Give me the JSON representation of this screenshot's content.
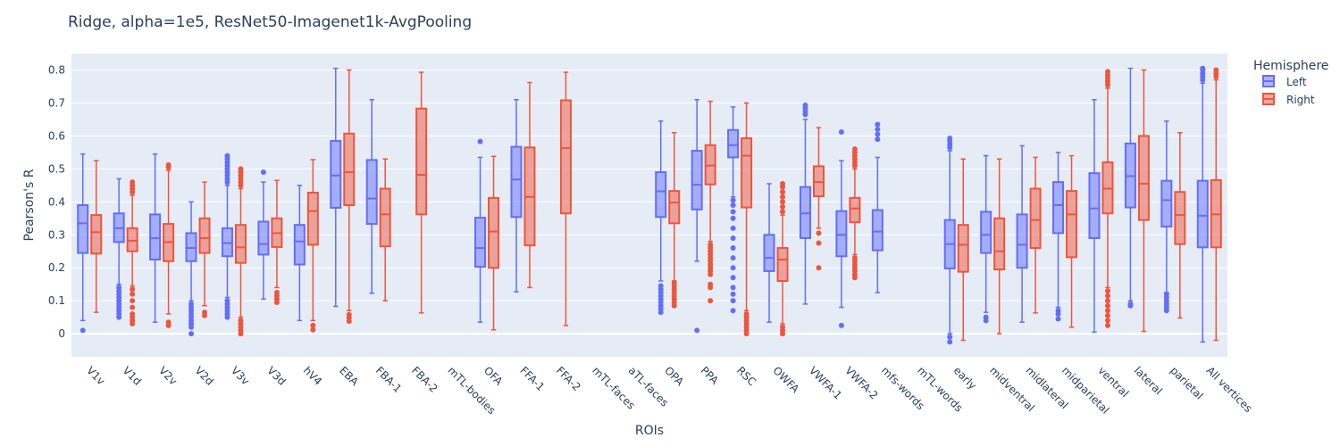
{
  "chart_data": {
    "type": "box",
    "title": "Ridge, alpha=1e5, ResNet50-Imagenet1k-AvgPooling",
    "xlabel": "ROIs",
    "ylabel": "Pearson's R",
    "ylim": [
      -0.07,
      0.85
    ],
    "yticks": [
      0,
      0.1,
      0.2,
      0.3,
      0.4,
      0.5,
      0.6,
      0.7,
      0.8
    ],
    "ytick_labels": [
      "0",
      "0.1",
      "0.2",
      "0.3",
      "0.4",
      "0.5",
      "0.6",
      "0.7",
      "0.8"
    ],
    "grid": true,
    "legend": {
      "title": "Hemisphere",
      "position": "top-right"
    },
    "categories": [
      "V1v",
      "V1d",
      "V2v",
      "V2d",
      "V3v",
      "V3d",
      "hV4",
      "EBA",
      "FBA-1",
      "FBA-2",
      "mTL-bodies",
      "OFA",
      "FFA-1",
      "FFA-2",
      "mTL-faces",
      "aTL-faces",
      "OPA",
      "PPA",
      "RSC",
      "OWFA",
      "VWFA-1",
      "VWFA-2",
      "mfs-words",
      "mTL-words",
      "early",
      "midventral",
      "midlateral",
      "midparietal",
      "ventral",
      "lateral",
      "parietal",
      "All vertices"
    ],
    "series": [
      {
        "name": "Left",
        "color": "#636efa",
        "boxes": [
          {
            "min": 0.04,
            "q1": 0.245,
            "median": 0.335,
            "q3": 0.39,
            "max": 0.545,
            "outliers": [
              0.01
            ]
          },
          {
            "min": 0.15,
            "q1": 0.278,
            "median": 0.32,
            "q3": 0.365,
            "max": 0.47,
            "outliers": [
              0.05,
              0.06,
              0.07,
              0.08,
              0.09,
              0.1,
              0.11,
              0.12,
              0.13,
              0.14
            ]
          },
          {
            "min": 0.035,
            "q1": 0.225,
            "median": 0.29,
            "q3": 0.362,
            "max": 0.545,
            "outliers": []
          },
          {
            "min": 0.1,
            "q1": 0.22,
            "median": 0.26,
            "q3": 0.305,
            "max": 0.4,
            "outliers": [
              0,
              0.02,
              0.03,
              0.04,
              0.05,
              0.06,
              0.07,
              0.08,
              0.09
            ]
          },
          {
            "min": 0.11,
            "q1": 0.235,
            "median": 0.275,
            "q3": 0.32,
            "max": 0.45,
            "outliers": [
              0.05,
              0.06,
              0.07,
              0.08,
              0.09,
              0.1,
              0.46,
              0.47,
              0.48,
              0.49,
              0.5,
              0.51,
              0.52,
              0.53,
              0.54
            ]
          },
          {
            "min": 0.105,
            "q1": 0.24,
            "median": 0.272,
            "q3": 0.34,
            "max": 0.46,
            "outliers": [
              0.49
            ]
          },
          {
            "min": 0.04,
            "q1": 0.21,
            "median": 0.28,
            "q3": 0.33,
            "max": 0.45,
            "outliers": []
          },
          {
            "min": 0.083,
            "q1": 0.382,
            "median": 0.48,
            "q3": 0.585,
            "max": 0.805,
            "outliers": []
          },
          {
            "min": 0.123,
            "q1": 0.333,
            "median": 0.41,
            "q3": 0.527,
            "max": 0.71,
            "outliers": []
          },
          null,
          null,
          {
            "min": 0.035,
            "q1": 0.203,
            "median": 0.26,
            "q3": 0.352,
            "max": 0.535,
            "outliers": [
              0.583
            ]
          },
          {
            "min": 0.127,
            "q1": 0.354,
            "median": 0.468,
            "q3": 0.567,
            "max": 0.71,
            "outliers": []
          },
          null,
          null,
          null,
          {
            "min": 0.16,
            "q1": 0.354,
            "median": 0.432,
            "q3": 0.49,
            "max": 0.645,
            "outliers": [
              0.065,
              0.075,
              0.085,
              0.095,
              0.105,
              0.115,
              0.125,
              0.135,
              0.145
            ]
          },
          {
            "min": 0.22,
            "q1": 0.377,
            "median": 0.452,
            "q3": 0.555,
            "max": 0.71,
            "outliers": [
              0.01
            ]
          },
          {
            "min": 0.415,
            "q1": 0.535,
            "median": 0.572,
            "q3": 0.618,
            "max": 0.688,
            "outliers": [
              0.07,
              0.1,
              0.12,
              0.14,
              0.17,
              0.2,
              0.23,
              0.26,
              0.29,
              0.32,
              0.35,
              0.37,
              0.39,
              0.405
            ]
          },
          {
            "min": 0.035,
            "q1": 0.19,
            "median": 0.23,
            "q3": 0.3,
            "max": 0.455,
            "outliers": []
          },
          {
            "min": 0.09,
            "q1": 0.29,
            "median": 0.365,
            "q3": 0.445,
            "max": 0.65,
            "outliers": [
              0.665,
              0.675,
              0.685,
              0.693
            ]
          },
          {
            "min": 0.08,
            "q1": 0.235,
            "median": 0.3,
            "q3": 0.372,
            "max": 0.525,
            "outliers": [
              0.025,
              0.612
            ]
          },
          {
            "min": 0.125,
            "q1": 0.253,
            "median": 0.31,
            "q3": 0.375,
            "max": 0.535,
            "outliers": [
              0.59,
              0.605,
              0.62,
              0.635
            ]
          },
          null,
          {
            "min": 0.0,
            "q1": 0.198,
            "median": 0.272,
            "q3": 0.345,
            "max": 0.555,
            "outliers": [
              -0.025,
              -0.01,
              0.565,
              0.575,
              0.585,
              0.593
            ]
          },
          {
            "min": 0.065,
            "q1": 0.245,
            "median": 0.3,
            "q3": 0.37,
            "max": 0.54,
            "outliers": [
              0.04,
              0.05
            ]
          },
          {
            "min": 0.035,
            "q1": 0.2,
            "median": 0.27,
            "q3": 0.362,
            "max": 0.57,
            "outliers": []
          },
          {
            "min": 0.08,
            "q1": 0.305,
            "median": 0.39,
            "q3": 0.46,
            "max": 0.55,
            "outliers": [
              0.045,
              0.06,
              0.07
            ]
          },
          {
            "min": 0.005,
            "q1": 0.29,
            "median": 0.38,
            "q3": 0.487,
            "max": 0.71,
            "outliers": []
          },
          {
            "min": 0.1,
            "q1": 0.383,
            "median": 0.478,
            "q3": 0.577,
            "max": 0.805,
            "outliers": [
              0.085,
              0.09
            ]
          },
          {
            "min": 0.125,
            "q1": 0.325,
            "median": 0.405,
            "q3": 0.464,
            "max": 0.645,
            "outliers": [
              0.07,
              0.08,
              0.09,
              0.1,
              0.11,
              0.12
            ]
          },
          {
            "min": -0.025,
            "q1": 0.262,
            "median": 0.358,
            "q3": 0.464,
            "max": 0.76,
            "outliers": [
              0.77,
              0.78,
              0.79,
              0.8,
              0.805
            ]
          }
        ]
      },
      {
        "name": "Right",
        "color": "#ef553b",
        "boxes": [
          {
            "min": 0.065,
            "q1": 0.243,
            "median": 0.308,
            "q3": 0.36,
            "max": 0.525,
            "outliers": []
          },
          {
            "min": 0.145,
            "q1": 0.25,
            "median": 0.282,
            "q3": 0.32,
            "max": 0.42,
            "outliers": [
              0.03,
              0.04,
              0.05,
              0.06,
              0.08,
              0.1,
              0.12,
              0.135,
              0.43,
              0.44,
              0.45,
              0.46
            ]
          },
          {
            "min": 0.06,
            "q1": 0.22,
            "median": 0.278,
            "q3": 0.333,
            "max": 0.495,
            "outliers": [
              0.025,
              0.035,
              0.505,
              0.512
            ]
          },
          {
            "min": 0.085,
            "q1": 0.245,
            "median": 0.29,
            "q3": 0.35,
            "max": 0.46,
            "outliers": [
              0.055,
              0.065
            ]
          },
          {
            "min": 0.05,
            "q1": 0.215,
            "median": 0.262,
            "q3": 0.33,
            "max": 0.44,
            "outliers": [
              0.0,
              0.01,
              0.02,
              0.03,
              0.04,
              0.45,
              0.46,
              0.47,
              0.48,
              0.49,
              0.5
            ]
          },
          {
            "min": 0.14,
            "q1": 0.263,
            "median": 0.305,
            "q3": 0.35,
            "max": 0.465,
            "outliers": [
              0.095,
              0.105,
              0.115,
              0.125
            ]
          },
          {
            "min": 0.04,
            "q1": 0.27,
            "median": 0.372,
            "q3": 0.428,
            "max": 0.528,
            "outliers": [
              0.012,
              0.025
            ]
          },
          {
            "min": 0.07,
            "q1": 0.39,
            "median": 0.49,
            "q3": 0.607,
            "max": 0.8,
            "outliers": [
              0.038,
              0.048,
              0.058
            ]
          },
          {
            "min": 0.1,
            "q1": 0.265,
            "median": 0.362,
            "q3": 0.44,
            "max": 0.53,
            "outliers": []
          },
          {
            "min": 0.063,
            "q1": 0.362,
            "median": 0.482,
            "q3": 0.683,
            "max": 0.793,
            "outliers": []
          },
          null,
          {
            "min": 0.012,
            "q1": 0.2,
            "median": 0.31,
            "q3": 0.412,
            "max": 0.538,
            "outliers": []
          },
          {
            "min": 0.14,
            "q1": 0.268,
            "median": 0.415,
            "q3": 0.565,
            "max": 0.762,
            "outliers": []
          },
          {
            "min": 0.025,
            "q1": 0.365,
            "median": 0.563,
            "q3": 0.708,
            "max": 0.793,
            "outliers": []
          },
          null,
          null,
          {
            "min": 0.16,
            "q1": 0.335,
            "median": 0.398,
            "q3": 0.433,
            "max": 0.61,
            "outliers": [
              0.085,
              0.095,
              0.105,
              0.115,
              0.125,
              0.135,
              0.145,
              0.155
            ]
          },
          {
            "min": 0.28,
            "q1": 0.453,
            "median": 0.51,
            "q3": 0.572,
            "max": 0.705,
            "outliers": [
              0.1,
              0.14,
              0.15,
              0.18,
              0.19,
              0.2,
              0.21,
              0.22,
              0.23,
              0.24,
              0.25,
              0.26,
              0.27
            ]
          },
          {
            "min": 0.07,
            "q1": 0.383,
            "median": 0.54,
            "q3": 0.593,
            "max": 0.7,
            "outliers": [
              0.0,
              0.01,
              0.02,
              0.03,
              0.04,
              0.05,
              0.06
            ]
          },
          {
            "min": 0.03,
            "q1": 0.16,
            "median": 0.225,
            "q3": 0.26,
            "max": 0.36,
            "outliers": [
              0.0,
              0.01,
              0.02,
              0.37,
              0.385,
              0.4,
              0.415,
              0.43,
              0.445,
              0.455
            ]
          },
          {
            "min": 0.32,
            "q1": 0.417,
            "median": 0.46,
            "q3": 0.508,
            "max": 0.625,
            "outliers": [
              0.2,
              0.275,
              0.305
            ]
          },
          {
            "min": 0.24,
            "q1": 0.338,
            "median": 0.38,
            "q3": 0.412,
            "max": 0.5,
            "outliers": [
              0.17,
              0.18,
              0.19,
              0.2,
              0.21,
              0.22,
              0.23,
              0.51,
              0.52,
              0.53,
              0.54,
              0.55,
              0.56
            ]
          },
          null,
          null,
          {
            "min": -0.02,
            "q1": 0.188,
            "median": 0.27,
            "q3": 0.33,
            "max": 0.53,
            "outliers": []
          },
          {
            "min": 0.0,
            "q1": 0.195,
            "median": 0.25,
            "q3": 0.35,
            "max": 0.53,
            "outliers": []
          },
          {
            "min": 0.063,
            "q1": 0.26,
            "median": 0.345,
            "q3": 0.44,
            "max": 0.535,
            "outliers": []
          },
          {
            "min": 0.02,
            "q1": 0.232,
            "median": 0.362,
            "q3": 0.433,
            "max": 0.54,
            "outliers": []
          },
          {
            "min": 0.14,
            "q1": 0.365,
            "median": 0.44,
            "q3": 0.52,
            "max": 0.745,
            "outliers": [
              0.025,
              0.04,
              0.055,
              0.07,
              0.085,
              0.1,
              0.115,
              0.13,
              0.755,
              0.765,
              0.775,
              0.785,
              0.795
            ]
          },
          {
            "min": 0.007,
            "q1": 0.345,
            "median": 0.455,
            "q3": 0.6,
            "max": 0.8,
            "outliers": []
          },
          {
            "min": 0.048,
            "q1": 0.272,
            "median": 0.36,
            "q3": 0.43,
            "max": 0.61,
            "outliers": []
          },
          {
            "min": -0.02,
            "q1": 0.262,
            "median": 0.362,
            "q3": 0.466,
            "max": 0.77,
            "outliers": [
              0.78,
              0.79,
              0.8
            ]
          }
        ]
      }
    ]
  }
}
